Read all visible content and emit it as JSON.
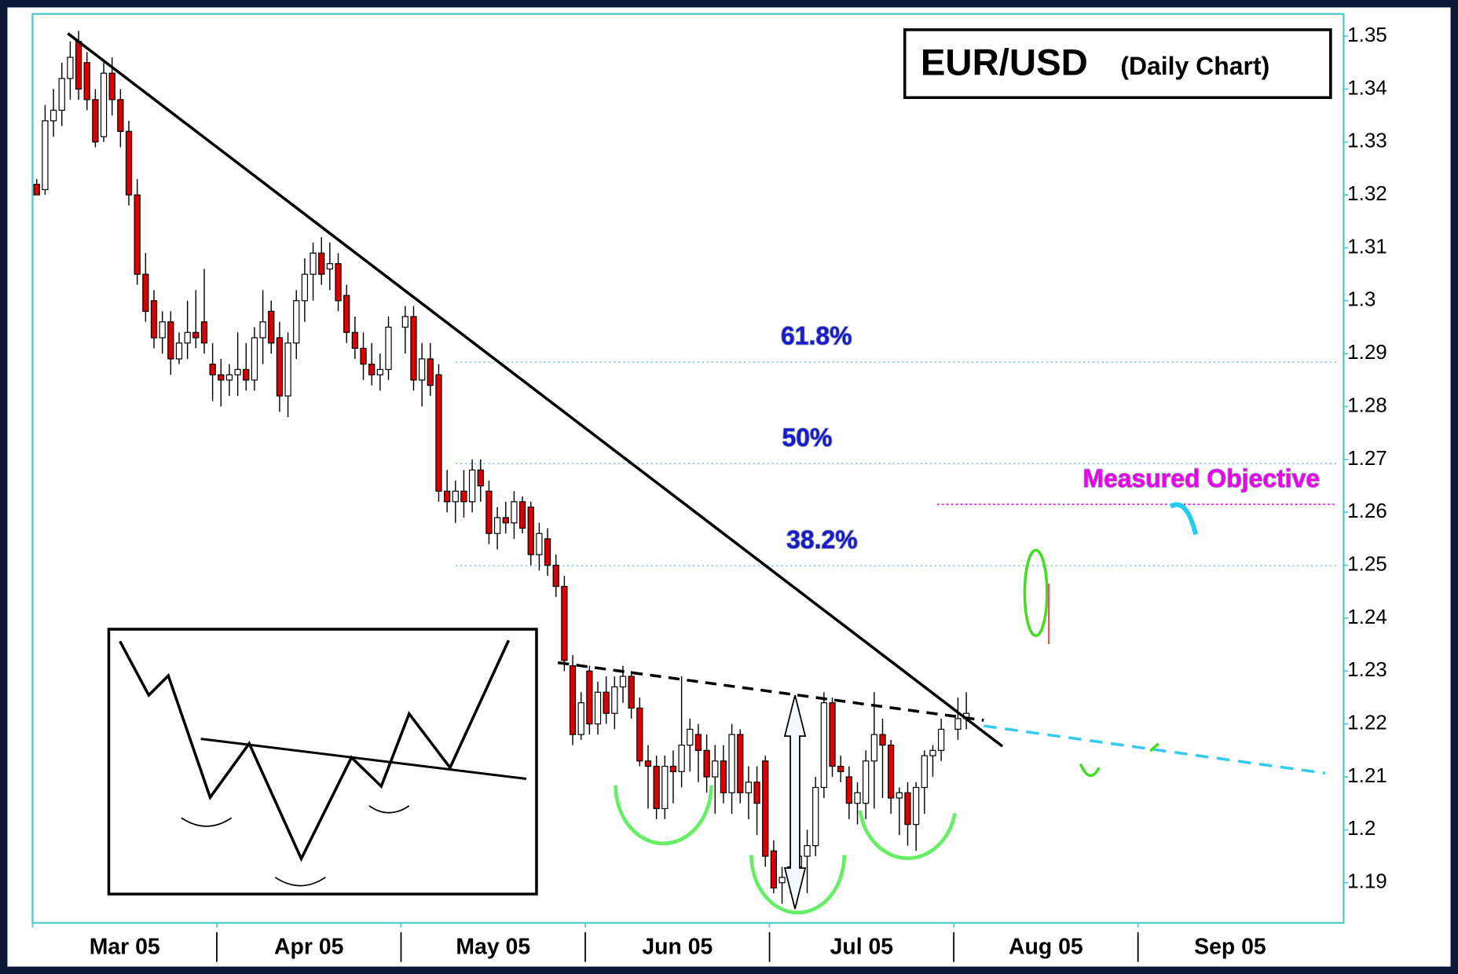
{
  "chart_data": {
    "type": "candlestick",
    "title": "EUR/USD",
    "subtitle": "(Daily Chart)",
    "ylim": [
      1.1824,
      1.3542
    ],
    "yticks": [
      1.19,
      1.2,
      1.21,
      1.22,
      1.23,
      1.24,
      1.25,
      1.26,
      1.27,
      1.28,
      1.29,
      1.3,
      1.31,
      1.32,
      1.33,
      1.34,
      1.35
    ],
    "up_color": "#ffffff",
    "down_color": "#dd0000",
    "levels": [
      {
        "label": "61.8%",
        "value": 1.2884,
        "color": "#1a1acc"
      },
      {
        "label": "50%",
        "value": 1.2692,
        "color": "#1a1acc"
      },
      {
        "label": "38.2%",
        "value": 1.2499,
        "color": "#1a1acc"
      },
      {
        "label": "Measured Objective",
        "value": 1.2615,
        "color": "#ee00ee"
      }
    ],
    "months": [
      {
        "label": "Mar 05",
        "candles": [
          [
            1.322,
            1.323,
            1.32,
            1.32
          ],
          [
            1.321,
            1.337,
            1.32,
            1.334
          ],
          [
            1.334,
            1.34,
            1.331,
            1.336
          ],
          [
            1.336,
            1.345,
            1.333,
            1.342
          ],
          [
            1.342,
            1.349,
            1.338,
            1.346
          ],
          [
            1.349,
            1.351,
            1.338,
            1.34
          ],
          [
            1.345,
            1.347,
            1.336,
            1.338
          ],
          [
            1.338,
            1.34,
            1.329,
            1.33
          ],
          [
            1.331,
            1.345,
            1.33,
            1.343
          ],
          [
            1.343,
            1.346,
            1.335,
            1.338
          ],
          [
            1.338,
            1.34,
            1.329,
            1.332
          ],
          [
            1.332,
            1.334,
            1.318,
            1.32
          ],
          [
            1.32,
            1.323,
            1.303,
            1.305
          ],
          [
            1.305,
            1.309,
            1.296,
            1.298
          ],
          [
            1.3,
            1.302,
            1.291,
            1.293
          ],
          [
            1.293,
            1.298,
            1.29,
            1.296
          ],
          [
            1.296,
            1.298,
            1.286,
            1.289
          ],
          [
            1.289,
            1.294,
            1.288,
            1.292
          ],
          [
            1.292,
            1.3,
            1.289,
            1.294
          ],
          [
            1.294,
            1.302,
            1.291,
            1.293
          ],
          [
            1.296,
            1.306,
            1.29,
            1.292
          ],
          [
            1.288,
            1.292,
            1.281,
            1.286
          ]
        ]
      },
      {
        "label": "Apr 05",
        "candles": [
          [
            1.286,
            1.289,
            1.28,
            1.285
          ],
          [
            1.285,
            1.288,
            1.282,
            1.286
          ],
          [
            1.286,
            1.294,
            1.282,
            1.287
          ],
          [
            1.287,
            1.292,
            1.283,
            1.285
          ],
          [
            1.285,
            1.295,
            1.283,
            1.293
          ],
          [
            1.293,
            1.302,
            1.288,
            1.296
          ],
          [
            1.298,
            1.3,
            1.29,
            1.292
          ],
          [
            1.293,
            1.296,
            1.279,
            1.282
          ],
          [
            1.282,
            1.294,
            1.278,
            1.292
          ],
          [
            1.292,
            1.302,
            1.289,
            1.3
          ],
          [
            1.3,
            1.308,
            1.296,
            1.305
          ],
          [
            1.305,
            1.311,
            1.3,
            1.309
          ],
          [
            1.309,
            1.312,
            1.303,
            1.305
          ],
          [
            1.306,
            1.311,
            1.302,
            1.307
          ],
          [
            1.307,
            1.309,
            1.298,
            1.3
          ],
          [
            1.301,
            1.303,
            1.292,
            1.294
          ],
          [
            1.294,
            1.297,
            1.289,
            1.291
          ],
          [
            1.291,
            1.294,
            1.285,
            1.288
          ],
          [
            1.288,
            1.292,
            1.284,
            1.286
          ],
          [
            1.286,
            1.29,
            1.283,
            1.287
          ],
          [
            1.287,
            1.297,
            1.285,
            1.295
          ]
        ]
      },
      {
        "label": "May 05",
        "candles": [
          [
            1.295,
            1.299,
            1.29,
            1.297
          ],
          [
            1.297,
            1.299,
            1.283,
            1.285
          ],
          [
            1.285,
            1.292,
            1.28,
            1.289
          ],
          [
            1.289,
            1.292,
            1.282,
            1.284
          ],
          [
            1.286,
            1.288,
            1.262,
            1.264
          ],
          [
            1.264,
            1.268,
            1.26,
            1.262
          ],
          [
            1.262,
            1.266,
            1.258,
            1.264
          ],
          [
            1.264,
            1.268,
            1.259,
            1.262
          ],
          [
            1.262,
            1.27,
            1.26,
            1.268
          ],
          [
            1.268,
            1.27,
            1.262,
            1.265
          ],
          [
            1.264,
            1.266,
            1.254,
            1.256
          ],
          [
            1.256,
            1.261,
            1.253,
            1.259
          ],
          [
            1.259,
            1.262,
            1.256,
            1.258
          ],
          [
            1.258,
            1.264,
            1.255,
            1.262
          ],
          [
            1.262,
            1.263,
            1.256,
            1.257
          ],
          [
            1.261,
            1.262,
            1.25,
            1.252
          ],
          [
            1.252,
            1.258,
            1.249,
            1.256
          ],
          [
            1.255,
            1.257,
            1.248,
            1.25
          ],
          [
            1.25,
            1.252,
            1.244,
            1.246
          ],
          [
            1.246,
            1.248,
            1.23,
            1.232
          ],
          [
            1.231,
            1.233,
            1.216,
            1.218
          ],
          [
            1.218,
            1.226,
            1.217,
            1.224
          ]
        ]
      },
      {
        "label": "Jun 05",
        "candles": [
          [
            1.23,
            1.231,
            1.218,
            1.22
          ],
          [
            1.22,
            1.228,
            1.218,
            1.226
          ],
          [
            1.226,
            1.229,
            1.22,
            1.222
          ],
          [
            1.222,
            1.229,
            1.219,
            1.227
          ],
          [
            1.227,
            1.231,
            1.224,
            1.229
          ],
          [
            1.229,
            1.23,
            1.221,
            1.223
          ],
          [
            1.223,
            1.225,
            1.212,
            1.213
          ],
          [
            1.213,
            1.216,
            1.204,
            1.212
          ],
          [
            1.212,
            1.214,
            1.202,
            1.204
          ],
          [
            1.204,
            1.214,
            1.202,
            1.212
          ],
          [
            1.212,
            1.215,
            1.205,
            1.211
          ],
          [
            1.211,
            1.229,
            1.208,
            1.216
          ],
          [
            1.216,
            1.221,
            1.211,
            1.219
          ],
          [
            1.218,
            1.22,
            1.209,
            1.215
          ],
          [
            1.215,
            1.218,
            1.207,
            1.21
          ],
          [
            1.21,
            1.216,
            1.203,
            1.213
          ],
          [
            1.213,
            1.216,
            1.205,
            1.207
          ],
          [
            1.207,
            1.22,
            1.203,
            1.218
          ],
          [
            1.218,
            1.219,
            1.205,
            1.207
          ],
          [
            1.207,
            1.212,
            1.202,
            1.209
          ],
          [
            1.209,
            1.212,
            1.199,
            1.205
          ],
          [
            1.213,
            1.214,
            1.193,
            1.195
          ]
        ]
      },
      {
        "label": "Jul 05",
        "candles": [
          [
            1.196,
            1.198,
            1.188,
            1.189
          ],
          [
            1.19,
            1.193,
            1.186,
            1.191
          ],
          [
            1.191,
            1.195,
            1.188,
            1.193
          ],
          [
            1.193,
            1.196,
            1.19,
            1.195
          ],
          [
            1.195,
            1.2,
            1.188,
            1.197
          ],
          [
            1.197,
            1.21,
            1.195,
            1.208
          ],
          [
            1.208,
            1.226,
            1.206,
            1.224
          ],
          [
            1.224,
            1.225,
            1.21,
            1.212
          ],
          [
            1.212,
            1.214,
            1.209,
            1.211
          ],
          [
            1.21,
            1.212,
            1.202,
            1.205
          ],
          [
            1.205,
            1.209,
            1.201,
            1.207
          ],
          [
            1.205,
            1.215,
            1.202,
            1.213
          ],
          [
            1.213,
            1.226,
            1.204,
            1.218
          ],
          [
            1.218,
            1.221,
            1.206,
            1.216
          ],
          [
            1.216,
            1.217,
            1.203,
            1.206
          ],
          [
            1.206,
            1.208,
            1.199,
            1.207
          ],
          [
            1.207,
            1.209,
            1.197,
            1.201
          ],
          [
            1.201,
            1.209,
            1.196,
            1.208
          ],
          [
            1.208,
            1.215,
            1.203,
            1.214
          ],
          [
            1.214,
            1.216,
            1.21,
            1.215
          ],
          [
            1.215,
            1.221,
            1.213,
            1.219
          ]
        ]
      },
      {
        "label": "Aug 05",
        "candles": [
          [
            1.219,
            1.225,
            1.217,
            1.221
          ],
          [
            1.221,
            1.226,
            1.219,
            1.222
          ]
        ]
      },
      {
        "label": "Sep 05",
        "candles": []
      }
    ]
  }
}
